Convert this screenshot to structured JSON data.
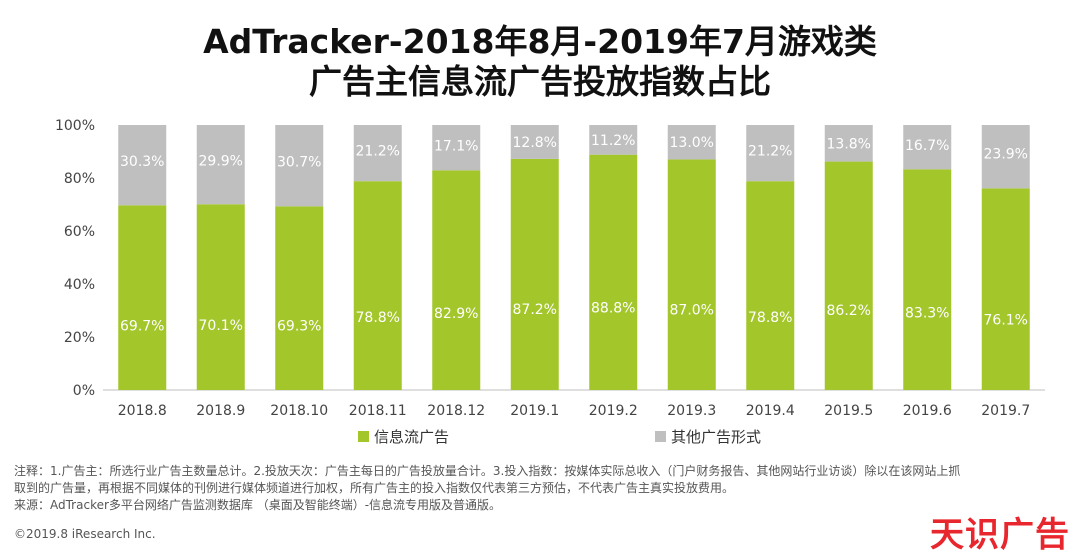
{
  "title_line1": "AdTracker-2018年8月-2019年7月游戏类",
  "title_line2": "广告主信息流广告投放指数占比",
  "notes": {
    "line1": "注释：1.广告主：所选行业广告主数量总计。2.投放天次：广告主每日的广告投放量合计。3.投入指数：按媒体实际总收入（门户财务报告、其他网站行业访谈）除以在该网站上抓",
    "line2": "取到的广告量，再根据不同媒体的刊例进行媒体频道进行加权，所有广告主的投入指数仅代表第三方预估，不代表广告主真实投放费用。",
    "line3": "来源：AdTracker多平台网络广告监测数据库 （桌面及智能终端）-信息流专用版及普通版。"
  },
  "copyright": "©2019.8 iResearch Inc.",
  "watermark": "天识广告",
  "colors": {
    "feed": "#a3c62b",
    "other": "#bfbfbf",
    "label": "#ffffff"
  },
  "chart_data": {
    "type": "bar",
    "stacked": true,
    "categories": [
      "2018.8",
      "2018.9",
      "2018.10",
      "2018.11",
      "2018.12",
      "2019.1",
      "2019.2",
      "2019.3",
      "2019.4",
      "2019.5",
      "2019.6",
      "2019.7"
    ],
    "series": [
      {
        "name": "信息流广告",
        "values": [
          69.7,
          70.1,
          69.3,
          78.8,
          82.9,
          87.2,
          88.8,
          87.0,
          78.8,
          86.2,
          83.3,
          76.1
        ]
      },
      {
        "name": "其他广告形式",
        "values": [
          30.3,
          29.9,
          30.7,
          21.2,
          17.1,
          12.8,
          11.2,
          13.0,
          21.2,
          13.8,
          16.7,
          23.9
        ]
      }
    ],
    "ylim": [
      0,
      100
    ],
    "yticks": [
      "0%",
      "20%",
      "40%",
      "60%",
      "80%",
      "100%"
    ],
    "legend_position": "bottom"
  }
}
